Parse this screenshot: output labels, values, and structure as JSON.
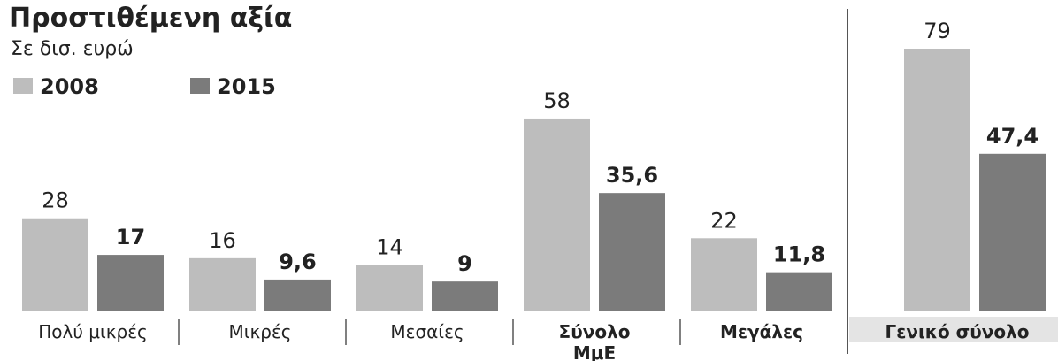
{
  "chart_data": {
    "type": "bar",
    "title": "Προστιθέμενη αξία",
    "subtitle": "Σε δισ. ευρώ",
    "categories": [
      "Πολύ μικρές",
      "Μικρές",
      "Μεσαίες",
      "Σύνολο ΜμΕ",
      "Μεγάλες",
      "Γενικό σύνολο"
    ],
    "series": [
      {
        "name": "2008",
        "color": "#bdbdbd",
        "values": [
          28,
          16,
          14,
          58,
          22,
          79
        ]
      },
      {
        "name": "2015",
        "color": "#7b7b7b",
        "values": [
          17,
          9.6,
          9,
          35.6,
          11.8,
          47.4
        ],
        "value_labels": [
          "17",
          "9,6",
          "9",
          "35,6",
          "11,8",
          "47,4"
        ]
      }
    ]
  }
}
